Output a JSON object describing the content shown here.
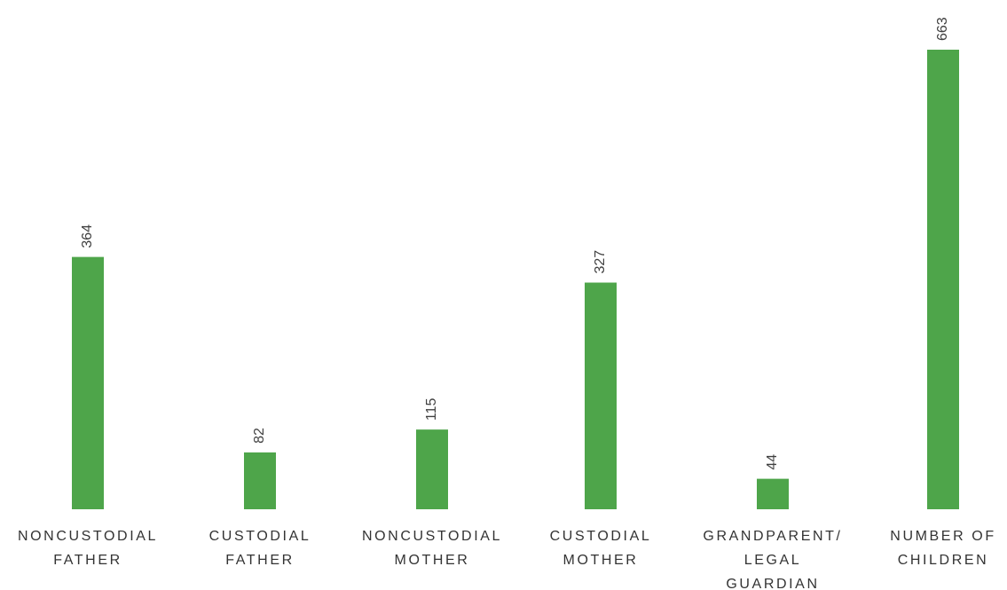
{
  "chart_data": {
    "type": "bar",
    "categories": [
      [
        "NONCUSTODIAL",
        "FATHER"
      ],
      [
        "CUSTODIAL",
        "FATHER"
      ],
      [
        "NONCUSTODIAL",
        "MOTHER"
      ],
      [
        "CUSTODIAL",
        "MOTHER"
      ],
      [
        "GRANDPARENT/",
        "LEGAL",
        "GUARDIAN"
      ],
      [
        "NUMBER OF",
        "CHILDREN"
      ]
    ],
    "values": [
      364,
      82,
      115,
      327,
      44,
      663
    ],
    "data_labels": [
      "364",
      "82",
      "115",
      "327",
      "44",
      "663"
    ],
    "ylim": [
      0,
      663
    ],
    "bar_color": "#4ea54a",
    "grid": false,
    "legend": "none",
    "value_label_orientation": "vertical"
  }
}
